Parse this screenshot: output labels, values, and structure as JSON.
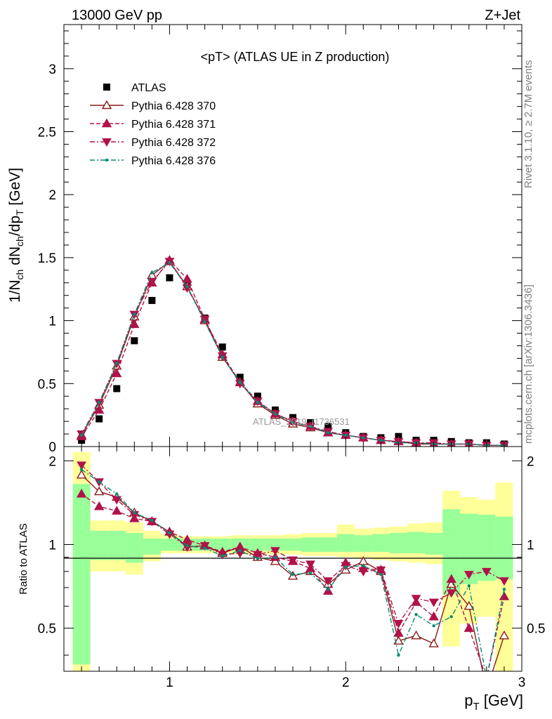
{
  "header": {
    "left": "13000 GeV pp",
    "right": "Z+Jet"
  },
  "side_labels": {
    "rivet": "Rivet 3.1.10, ≥ 2.7M events",
    "mcplots": "mcplots.cern.ch [arXiv:1306.3436]"
  },
  "watermark": "ATLAS_2019_I1736531",
  "chart_data": [
    {
      "panel": "main",
      "type": "scatter",
      "title": "<pT> (ATLAS UE in Z production)",
      "xlabel": "p_T [GeV]",
      "ylabel": "1/N_ch dN_ch/dp_T [GeV]",
      "xlim": [
        0.4,
        3.0
      ],
      "ylim": [
        0,
        3.35
      ],
      "yticks": [
        0,
        0.5,
        1,
        1.5,
        2,
        2.5,
        3
      ],
      "yticklabels": [
        "0",
        "0.5",
        "1",
        "1.5",
        "2",
        "2.5",
        "3"
      ],
      "grid": false,
      "legend_position": "top-left",
      "x": [
        0.5,
        0.6,
        0.7,
        0.8,
        0.9,
        1.0,
        1.1,
        1.2,
        1.3,
        1.4,
        1.5,
        1.6,
        1.7,
        1.8,
        1.9,
        2.0,
        2.1,
        2.2,
        2.3,
        2.4,
        2.5,
        2.6,
        2.7,
        2.8,
        2.9
      ],
      "series": [
        {
          "name": "ATLAS",
          "color": "#000000",
          "marker": "square",
          "values": [
            0.05,
            0.22,
            0.46,
            0.84,
            1.16,
            1.34,
            1.28,
            1.02,
            0.79,
            0.55,
            0.4,
            0.29,
            0.23,
            0.19,
            0.16,
            0.11,
            0.08,
            0.07,
            0.08,
            0.05,
            0.05,
            0.04,
            0.03,
            0.03,
            0.02
          ]
        },
        {
          "name": "Pythia 6.428 370",
          "color": "#8b1a1a",
          "marker": "triangle-up-open",
          "line": "solid",
          "values": [
            0.09,
            0.33,
            0.64,
            1.03,
            1.36,
            1.47,
            1.27,
            1.0,
            0.71,
            0.51,
            0.34,
            0.25,
            0.18,
            0.15,
            0.11,
            0.09,
            0.07,
            0.05,
            0.04,
            0.02,
            0.02,
            0.02,
            0.02,
            0.01,
            0.01
          ]
        },
        {
          "name": "Pythia 6.428 371",
          "color": "#b0124a",
          "marker": "triangle-up",
          "line": "dashed",
          "values": [
            0.08,
            0.29,
            0.58,
            0.97,
            1.3,
            1.48,
            1.33,
            1.01,
            0.73,
            0.51,
            0.36,
            0.26,
            0.2,
            0.16,
            0.11,
            0.09,
            0.07,
            0.05,
            0.04,
            0.03,
            0.02,
            0.02,
            0.02,
            0.01,
            0.01
          ]
        },
        {
          "name": "Pythia 6.428 372",
          "color": "#b0124a",
          "marker": "triangle-down",
          "line": "dashdot",
          "values": [
            0.1,
            0.35,
            0.66,
            1.05,
            1.31,
            1.47,
            1.26,
            1.01,
            0.72,
            0.5,
            0.36,
            0.26,
            0.2,
            0.16,
            0.12,
            0.09,
            0.07,
            0.05,
            0.04,
            0.03,
            0.03,
            0.02,
            0.02,
            0.01,
            0.01
          ]
        },
        {
          "name": "Pythia 6.428 376",
          "color": "#008b73",
          "marker": "dot",
          "line": "dashdot",
          "values": [
            0.09,
            0.35,
            0.66,
            1.05,
            1.38,
            1.46,
            1.27,
            0.99,
            0.71,
            0.51,
            0.35,
            0.26,
            0.19,
            0.16,
            0.11,
            0.09,
            0.07,
            0.05,
            0.03,
            0.03,
            0.02,
            0.02,
            0.02,
            0.01,
            0.01
          ]
        }
      ]
    },
    {
      "panel": "ratio",
      "type": "line",
      "xlabel": "p_T [GeV]",
      "ylabel": "Ratio to ATLAS",
      "xlim": [
        0.4,
        3.0
      ],
      "ylim": [
        0.35,
        2.25
      ],
      "xticks": [
        1,
        2,
        3
      ],
      "xticklabels": [
        "1",
        "2",
        "3"
      ],
      "yticks": [
        0.5,
        1,
        2
      ],
      "yticklabels": [
        "0.5",
        "1",
        "2"
      ],
      "bins": [
        0.45,
        0.55,
        0.65,
        0.75,
        0.85,
        0.95,
        1.05,
        1.15,
        1.25,
        1.35,
        1.45,
        1.55,
        1.65,
        1.75,
        1.85,
        1.95,
        2.05,
        2.15,
        2.25,
        2.35,
        2.45,
        2.55,
        2.65,
        2.75,
        2.85,
        2.95
      ],
      "band_green": [
        [
          0.37,
          1.65
        ],
        [
          0.88,
          1.12
        ],
        [
          0.88,
          1.12
        ],
        [
          0.86,
          1.1
        ],
        [
          0.92,
          1.05
        ],
        [
          0.95,
          1.05
        ],
        [
          0.95,
          1.05
        ],
        [
          0.95,
          1.05
        ],
        [
          0.95,
          1.05
        ],
        [
          0.95,
          1.05
        ],
        [
          0.95,
          1.05
        ],
        [
          0.95,
          1.05
        ],
        [
          0.95,
          1.05
        ],
        [
          0.94,
          1.06
        ],
        [
          0.94,
          1.06
        ],
        [
          0.94,
          1.09
        ],
        [
          0.94,
          1.08
        ],
        [
          0.94,
          1.09
        ],
        [
          0.93,
          1.1
        ],
        [
          0.93,
          1.11
        ],
        [
          0.92,
          1.1
        ],
        [
          0.66,
          1.34
        ],
        [
          0.72,
          1.29
        ],
        [
          0.74,
          1.28
        ],
        [
          0.75,
          1.26
        ]
      ],
      "band_yellow": [
        [
          0.35,
          2.15
        ],
        [
          0.8,
          1.22
        ],
        [
          0.8,
          1.22
        ],
        [
          0.78,
          1.2
        ],
        [
          0.87,
          1.12
        ],
        [
          0.93,
          1.09
        ],
        [
          0.93,
          1.07
        ],
        [
          0.93,
          1.07
        ],
        [
          0.93,
          1.07
        ],
        [
          0.92,
          1.08
        ],
        [
          0.92,
          1.08
        ],
        [
          0.92,
          1.08
        ],
        [
          0.92,
          1.09
        ],
        [
          0.91,
          1.1
        ],
        [
          0.91,
          1.1
        ],
        [
          0.9,
          1.18
        ],
        [
          0.89,
          1.14
        ],
        [
          0.88,
          1.15
        ],
        [
          0.87,
          1.16
        ],
        [
          0.86,
          1.19
        ],
        [
          0.85,
          1.2
        ],
        [
          0.43,
          1.56
        ],
        [
          0.52,
          1.48
        ],
        [
          0.55,
          1.45
        ],
        [
          0.35,
          1.67
        ]
      ],
      "x": [
        0.5,
        0.6,
        0.7,
        0.8,
        0.9,
        1.0,
        1.1,
        1.2,
        1.3,
        1.4,
        1.5,
        1.6,
        1.7,
        1.8,
        1.9,
        2.0,
        2.1,
        2.2,
        2.3,
        2.4,
        2.5,
        2.6,
        2.7,
        2.8,
        2.9
      ],
      "series": [
        {
          "name": "Pythia 6.428 370",
          "color": "#8b1a1a",
          "marker": "triangle-up-open",
          "line": "solid",
          "values": [
            1.78,
            1.55,
            1.48,
            1.3,
            1.21,
            1.11,
            0.98,
            0.99,
            0.93,
            0.98,
            0.9,
            0.87,
            0.77,
            0.8,
            0.72,
            0.81,
            0.87,
            0.8,
            0.45,
            0.47,
            0.44,
            0.72,
            0.6,
            0.3,
            0.47
          ]
        },
        {
          "name": "Pythia 6.428 371",
          "color": "#b0124a",
          "marker": "triangle-up",
          "line": "dashed",
          "values": [
            1.52,
            1.37,
            1.32,
            1.24,
            1.21,
            1.11,
            1.04,
            0.99,
            0.94,
            0.98,
            0.93,
            0.9,
            0.87,
            0.82,
            0.68,
            0.86,
            0.82,
            0.81,
            0.48,
            0.62,
            0.55,
            0.75,
            0.5,
            0.33,
            0.65
          ]
        },
        {
          "name": "Pythia 6.428 372",
          "color": "#b0124a",
          "marker": "triangle-down",
          "line": "dashdot",
          "values": [
            1.93,
            1.68,
            1.45,
            1.28,
            1.21,
            1.09,
            0.98,
            0.99,
            0.92,
            0.93,
            0.92,
            0.95,
            0.88,
            0.85,
            0.74,
            0.84,
            0.8,
            0.81,
            0.52,
            0.64,
            0.62,
            0.67,
            0.78,
            0.8,
            0.74
          ]
        },
        {
          "name": "Pythia 6.428 376",
          "color": "#008b73",
          "marker": "dot",
          "line": "dashdot",
          "values": [
            1.86,
            1.68,
            1.52,
            1.3,
            1.22,
            1.1,
            0.99,
            0.97,
            0.91,
            0.95,
            0.89,
            0.9,
            0.78,
            0.79,
            0.69,
            0.83,
            0.84,
            0.78,
            0.4,
            0.56,
            0.51,
            0.55,
            0.71,
            0.33,
            0.69
          ]
        }
      ]
    }
  ]
}
